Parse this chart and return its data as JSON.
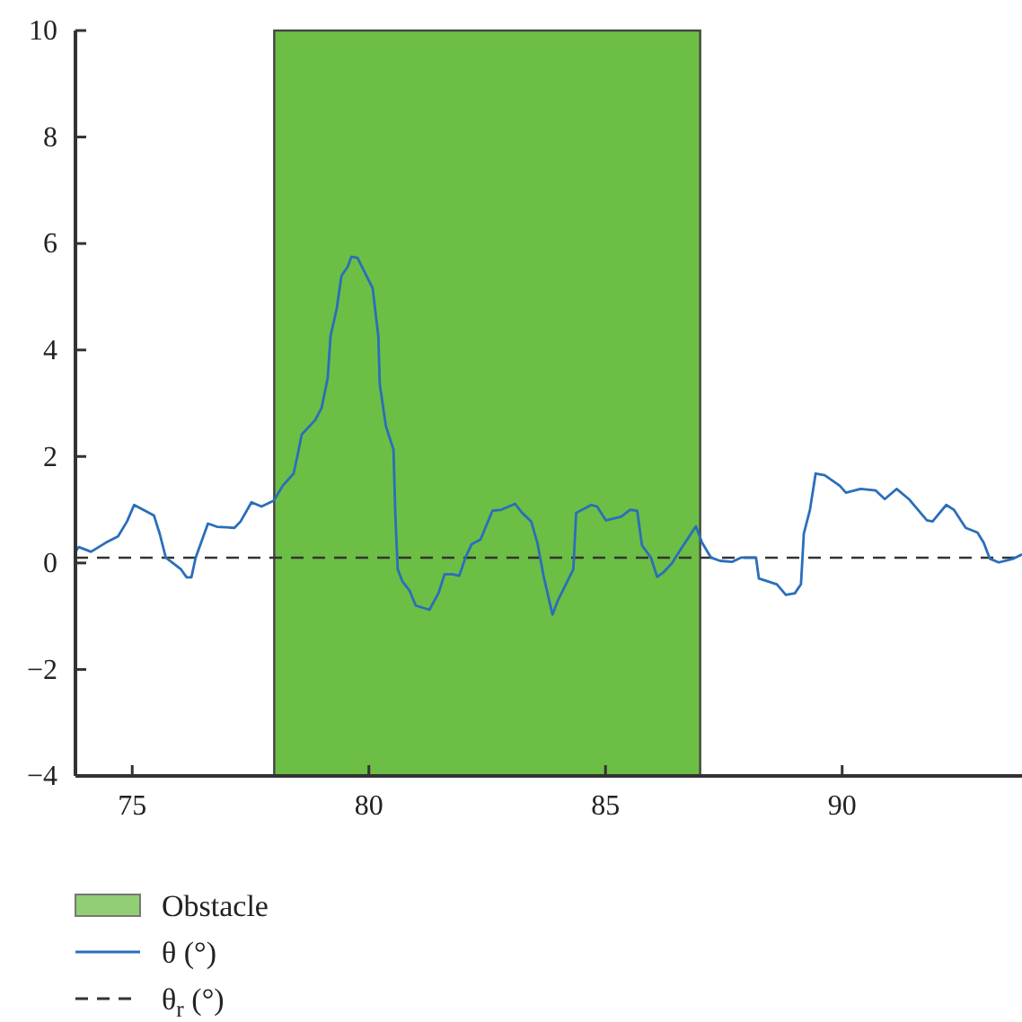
{
  "chart_data": {
    "type": "line",
    "xlim": [
      73.8,
      93.8
    ],
    "ylim": [
      -4,
      10
    ],
    "xticks": [
      75,
      80,
      85,
      90
    ],
    "yticks": [
      {
        "value": -4,
        "label": "−4"
      },
      {
        "value": -2,
        "label": "−2"
      },
      0,
      2,
      4,
      6,
      8,
      10
    ],
    "legend": "bottom",
    "grid": false,
    "series": [
      {
        "name": "θ (°)",
        "color": "#2a6ebb",
        "x": [
          73.8,
          73.87,
          74.13,
          74.44,
          74.7,
          74.89,
          75.04,
          75.46,
          75.58,
          75.71,
          76.03,
          76.15,
          76.25,
          76.34,
          76.6,
          76.79,
          77.16,
          77.29,
          77.52,
          77.73,
          77.99,
          78.18,
          78.41,
          78.49,
          78.58,
          78.87,
          79.0,
          79.13,
          79.19,
          79.32,
          79.42,
          79.55,
          79.63,
          79.76,
          79.89,
          80.08,
          80.2,
          80.23,
          80.36,
          80.52,
          80.56,
          80.61,
          80.71,
          80.86,
          80.99,
          81.28,
          81.47,
          81.6,
          81.75,
          81.91,
          82.04,
          82.17,
          82.36,
          82.61,
          82.8,
          83.09,
          83.24,
          83.43,
          83.56,
          83.69,
          83.88,
          84.0,
          84.13,
          84.32,
          84.38,
          84.7,
          84.82,
          85.01,
          85.33,
          85.52,
          85.67,
          85.77,
          85.96,
          86.09,
          86.22,
          86.4,
          86.6,
          86.91,
          87.04,
          87.23,
          87.42,
          87.67,
          87.86,
          88.18,
          88.24,
          88.62,
          88.81,
          89.0,
          89.13,
          89.19,
          89.32,
          89.44,
          89.63,
          89.95,
          90.08,
          90.39,
          90.71,
          90.9,
          91.15,
          91.41,
          91.79,
          91.91,
          92.2,
          92.36,
          92.61,
          92.86,
          92.99,
          93.12,
          93.31,
          93.62,
          93.8
        ],
        "values": [
          0.21,
          0.3,
          0.21,
          0.38,
          0.5,
          0.78,
          1.09,
          0.89,
          0.55,
          0.1,
          -0.12,
          -0.27,
          -0.27,
          0.1,
          0.74,
          0.68,
          0.66,
          0.78,
          1.14,
          1.06,
          1.17,
          1.45,
          1.68,
          2.01,
          2.41,
          2.69,
          2.91,
          3.47,
          4.26,
          4.77,
          5.39,
          5.56,
          5.75,
          5.73,
          5.5,
          5.16,
          4.26,
          3.36,
          2.57,
          2.13,
          0.89,
          -0.12,
          -0.35,
          -0.52,
          -0.8,
          -0.88,
          -0.57,
          -0.21,
          -0.21,
          -0.24,
          0.1,
          0.35,
          0.44,
          0.98,
          1.0,
          1.11,
          0.94,
          0.78,
          0.38,
          -0.24,
          -0.97,
          -0.69,
          -0.46,
          -0.12,
          0.94,
          1.09,
          1.06,
          0.8,
          0.87,
          1.0,
          0.98,
          0.33,
          0.1,
          -0.26,
          -0.18,
          -0.01,
          0.27,
          0.69,
          0.38,
          0.1,
          0.04,
          0.02,
          0.1,
          0.1,
          -0.29,
          -0.4,
          -0.6,
          -0.57,
          -0.4,
          0.55,
          1.0,
          1.68,
          1.65,
          1.45,
          1.32,
          1.39,
          1.36,
          1.2,
          1.39,
          1.2,
          0.8,
          0.78,
          1.09,
          1.0,
          0.66,
          0.57,
          0.38,
          0.08,
          0.01,
          0.08,
          0.16
        ]
      }
    ],
    "bands": [
      {
        "axis": "x",
        "from": 78,
        "to": 87,
        "label": "Obstacle",
        "color": "#6dbe45"
      }
    ],
    "ref_lines": [
      {
        "axis": "y",
        "value": 0.1,
        "label": "θ$_{r}$ (°)",
        "color": "#333333",
        "line_style": "dashed"
      }
    ]
  }
}
